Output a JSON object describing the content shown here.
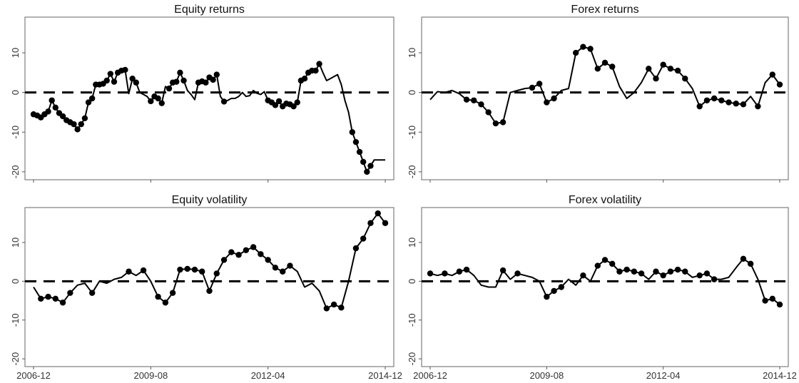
{
  "chart_data": [
    {
      "type": "line",
      "title": "Equity returns",
      "xlabel": "",
      "ylabel": "",
      "x_ticks": [
        "2006-12",
        "2009-08",
        "2012-04",
        "2014-12"
      ],
      "y_ticks": [
        10,
        0,
        -10,
        -20
      ],
      "ylim": [
        -22,
        19
      ],
      "xlim": [
        "2006-12",
        "2014-12"
      ],
      "reference_line": 0,
      "series": [
        {
          "x": [
            "2006-12",
            "2007-01",
            "2007-02",
            "2007-03",
            "2007-04",
            "2007-05",
            "2007-06",
            "2007-07",
            "2007-08",
            "2007-09",
            "2007-10",
            "2007-11",
            "2007-12",
            "2008-01",
            "2008-02",
            "2008-03",
            "2008-04",
            "2008-05",
            "2008-06",
            "2008-07",
            "2008-08",
            "2008-09",
            "2008-10",
            "2008-11",
            "2008-12",
            "2009-01",
            "2009-02",
            "2009-03",
            "2009-04",
            "2009-05",
            "2009-06",
            "2009-07",
            "2009-08",
            "2009-09",
            "2009-10",
            "2009-11",
            "2009-12",
            "2010-01",
            "2010-02",
            "2010-03",
            "2010-04",
            "2010-05",
            "2010-06",
            "2010-07",
            "2010-08",
            "2010-09",
            "2010-10",
            "2010-11",
            "2010-12",
            "2011-01",
            "2011-02",
            "2011-03",
            "2011-04",
            "2011-05",
            "2011-06",
            "2011-07",
            "2011-08",
            "2011-09",
            "2011-10",
            "2011-11",
            "2011-12",
            "2012-01",
            "2012-02",
            "2012-03",
            "2012-04",
            "2012-05",
            "2012-06",
            "2012-07",
            "2012-08",
            "2012-09",
            "2012-10",
            "2012-11",
            "2012-12",
            "2013-01",
            "2013-02",
            "2013-03",
            "2013-04",
            "2013-05",
            "2013-06",
            "2013-07",
            "2013-08",
            "2013-09",
            "2013-10",
            "2013-11",
            "2013-12",
            "2014-01",
            "2014-02",
            "2014-03",
            "2014-04",
            "2014-05",
            "2014-06",
            "2014-07",
            "2014-08",
            "2014-09",
            "2014-10",
            "2014-11",
            "2014-12"
          ],
          "values": [
            -5.5,
            -5.8,
            -6.3,
            -5.5,
            -4.8,
            -2.0,
            -3.8,
            -5.2,
            -6.0,
            -7.0,
            -7.5,
            -8.0,
            -9.3,
            -8.0,
            -6.5,
            -2.5,
            -1.5,
            2.0,
            2.0,
            2.2,
            3.0,
            4.7,
            2.7,
            5.0,
            5.5,
            5.7,
            -0.3,
            3.5,
            2.5,
            0.0,
            -0.5,
            -1.0,
            -2.2,
            -1.0,
            -1.5,
            -2.7,
            1.5,
            1.0,
            2.5,
            2.7,
            5.0,
            3.0,
            0.5,
            -0.5,
            -1.8,
            2.5,
            2.8,
            2.5,
            3.8,
            3.2,
            4.5,
            -1.0,
            -2.3,
            -2.0,
            -1.5,
            -1.5,
            -1.0,
            0.0,
            -1.0,
            -0.8,
            0.5,
            -0.2,
            -0.5,
            0.2,
            -2.0,
            -2.5,
            -3.2,
            -2.2,
            -3.5,
            -2.8,
            -3.0,
            -3.5,
            -2.5,
            3.0,
            3.5,
            5.0,
            5.5,
            5.5,
            7.2,
            5.0,
            3.0,
            3.5,
            4.0,
            4.5,
            2.0,
            -2.0,
            -5.0,
            -10.0,
            -12.5,
            -15.0,
            -17.5,
            -20.0,
            -18.5,
            -17.0,
            -17.0,
            -17.0,
            -17.0
          ],
          "markers": [
            0,
            1,
            2,
            3,
            4,
            5,
            6,
            7,
            8,
            9,
            10,
            11,
            12,
            13,
            14,
            15,
            16,
            17,
            18,
            19,
            20,
            21,
            22,
            23,
            24,
            25,
            27,
            28,
            32,
            33,
            34,
            35,
            37,
            38,
            39,
            40,
            41,
            45,
            46,
            47,
            48,
            49,
            50,
            52,
            64,
            65,
            66,
            67,
            68,
            69,
            70,
            71,
            72,
            73,
            74,
            75,
            76,
            77,
            78,
            87,
            88,
            89,
            90,
            91,
            92
          ]
        }
      ]
    },
    {
      "type": "line",
      "title": "Forex returns",
      "xlabel": "",
      "ylabel": "",
      "x_ticks": [
        "2006-12",
        "2009-08",
        "2012-04",
        "2014-12"
      ],
      "y_ticks": [
        10,
        0,
        -10,
        -20
      ],
      "ylim": [
        -22,
        19
      ],
      "xlim": [
        "2006-12",
        "2014-12"
      ],
      "reference_line": 0,
      "series": [
        {
          "x": [
            "2006-12",
            "2007-02",
            "2007-04",
            "2007-06",
            "2007-08",
            "2007-10",
            "2007-12",
            "2008-02",
            "2008-04",
            "2008-06",
            "2008-08",
            "2008-10",
            "2008-12",
            "2009-02",
            "2009-04",
            "2009-06",
            "2009-08",
            "2009-10",
            "2009-12",
            "2010-02",
            "2010-04",
            "2010-06",
            "2010-08",
            "2010-10",
            "2010-12",
            "2011-02",
            "2011-04",
            "2011-06",
            "2011-08",
            "2011-10",
            "2011-12",
            "2012-02",
            "2012-04",
            "2012-06",
            "2012-08",
            "2012-10",
            "2012-12",
            "2013-02",
            "2013-04",
            "2013-06",
            "2013-08",
            "2013-10",
            "2013-12",
            "2014-02",
            "2014-04",
            "2014-06",
            "2014-08",
            "2014-10",
            "2014-12"
          ],
          "values": [
            -1.8,
            0.2,
            0.0,
            0.5,
            -0.3,
            -1.8,
            -2.0,
            -3.0,
            -5.0,
            -7.8,
            -7.5,
            0.0,
            0.5,
            1.0,
            1.2,
            2.2,
            -2.5,
            -1.5,
            0.5,
            1.0,
            10.0,
            11.5,
            11.0,
            6.0,
            7.5,
            6.5,
            1.5,
            -1.5,
            0.0,
            2.5,
            6.0,
            3.5,
            7.0,
            6.0,
            5.5,
            3.5,
            1.0,
            -3.5,
            -2.0,
            -1.5,
            -2.0,
            -2.5,
            -2.8,
            -3.0,
            -1.0,
            -3.5,
            2.5,
            4.5,
            2.0
          ],
          "markers": [
            5,
            6,
            7,
            8,
            9,
            10,
            14,
            15,
            16,
            17,
            20,
            21,
            22,
            23,
            24,
            25,
            30,
            31,
            32,
            33,
            34,
            35,
            37,
            38,
            39,
            40,
            41,
            42,
            43,
            45,
            47,
            48
          ]
        }
      ]
    },
    {
      "type": "line",
      "title": "Equity volatility",
      "xlabel": "",
      "ylabel": "",
      "x_ticks": [
        "2006-12",
        "2009-08",
        "2012-04",
        "2014-12"
      ],
      "y_ticks": [
        10,
        0,
        -10,
        -20
      ],
      "ylim": [
        -22,
        19
      ],
      "xlim": [
        "2006-12",
        "2014-12"
      ],
      "reference_line": 0,
      "series": [
        {
          "x": [
            "2006-12",
            "2007-02",
            "2007-04",
            "2007-06",
            "2007-08",
            "2007-10",
            "2007-12",
            "2008-02",
            "2008-04",
            "2008-06",
            "2008-08",
            "2008-10",
            "2008-12",
            "2009-02",
            "2009-04",
            "2009-06",
            "2009-08",
            "2009-10",
            "2009-12",
            "2010-02",
            "2010-04",
            "2010-06",
            "2010-08",
            "2010-10",
            "2010-12",
            "2011-02",
            "2011-04",
            "2011-06",
            "2011-08",
            "2011-10",
            "2011-12",
            "2012-02",
            "2012-04",
            "2012-06",
            "2012-08",
            "2012-10",
            "2012-12",
            "2013-02",
            "2013-04",
            "2013-06",
            "2013-08",
            "2013-10",
            "2013-12",
            "2014-02",
            "2014-04",
            "2014-06",
            "2014-08",
            "2014-10",
            "2014-12"
          ],
          "values": [
            -1.5,
            -4.5,
            -4.0,
            -4.5,
            -5.5,
            -3.0,
            -1.0,
            -0.5,
            -3.0,
            0.0,
            -0.5,
            0.5,
            1.0,
            2.5,
            1.5,
            2.8,
            0.0,
            -4.0,
            -5.5,
            -3.0,
            3.0,
            3.2,
            3.0,
            2.5,
            -2.5,
            2.0,
            5.5,
            7.5,
            6.8,
            8.0,
            8.8,
            7.0,
            5.5,
            3.5,
            2.5,
            4.0,
            2.5,
            -1.5,
            -0.5,
            -2.5,
            -7.0,
            -6.0,
            -6.8,
            0.0,
            8.5,
            11.0,
            15.0,
            17.5,
            15.0
          ],
          "markers": [
            1,
            2,
            3,
            4,
            5,
            8,
            13,
            15,
            17,
            18,
            19,
            20,
            21,
            22,
            23,
            24,
            25,
            26,
            27,
            28,
            29,
            30,
            31,
            32,
            33,
            34,
            35,
            40,
            41,
            42,
            44,
            45,
            46,
            47,
            48
          ]
        }
      ]
    },
    {
      "type": "line",
      "title": "Forex volatility",
      "xlabel": "",
      "ylabel": "",
      "x_ticks": [
        "2006-12",
        "2009-08",
        "2012-04",
        "2014-12"
      ],
      "y_ticks": [
        10,
        0,
        -10,
        -20
      ],
      "ylim": [
        -22,
        19
      ],
      "xlim": [
        "2006-12",
        "2014-12"
      ],
      "reference_line": 0,
      "series": [
        {
          "x": [
            "2006-12",
            "2007-02",
            "2007-04",
            "2007-06",
            "2007-08",
            "2007-10",
            "2007-12",
            "2008-02",
            "2008-04",
            "2008-06",
            "2008-08",
            "2008-10",
            "2008-12",
            "2009-02",
            "2009-04",
            "2009-06",
            "2009-08",
            "2009-10",
            "2009-12",
            "2010-02",
            "2010-04",
            "2010-06",
            "2010-08",
            "2010-10",
            "2010-12",
            "2011-02",
            "2011-04",
            "2011-06",
            "2011-08",
            "2011-10",
            "2011-12",
            "2012-02",
            "2012-04",
            "2012-06",
            "2012-08",
            "2012-10",
            "2012-12",
            "2013-02",
            "2013-04",
            "2013-06",
            "2013-08",
            "2013-10",
            "2013-12",
            "2014-02",
            "2014-04",
            "2014-06",
            "2014-08",
            "2014-10",
            "2014-12"
          ],
          "values": [
            2.0,
            1.5,
            2.0,
            1.5,
            2.5,
            3.0,
            1.5,
            -1.0,
            -1.5,
            -1.5,
            2.8,
            0.5,
            2.0,
            1.5,
            1.0,
            0.0,
            -4.0,
            -2.5,
            -1.5,
            0.5,
            -1.0,
            1.5,
            0.0,
            4.0,
            5.5,
            4.5,
            2.5,
            3.0,
            2.5,
            2.0,
            0.5,
            2.5,
            1.5,
            2.5,
            3.0,
            2.5,
            1.0,
            1.5,
            2.0,
            0.5,
            0.5,
            1.0,
            3.5,
            5.8,
            4.5,
            0.5,
            -5.0,
            -4.5,
            -6.0
          ],
          "markers": [
            0,
            2,
            4,
            5,
            10,
            12,
            16,
            17,
            18,
            21,
            23,
            24,
            25,
            26,
            27,
            28,
            29,
            31,
            32,
            33,
            34,
            35,
            37,
            38,
            39,
            43,
            44,
            46,
            47,
            48
          ]
        }
      ]
    }
  ]
}
